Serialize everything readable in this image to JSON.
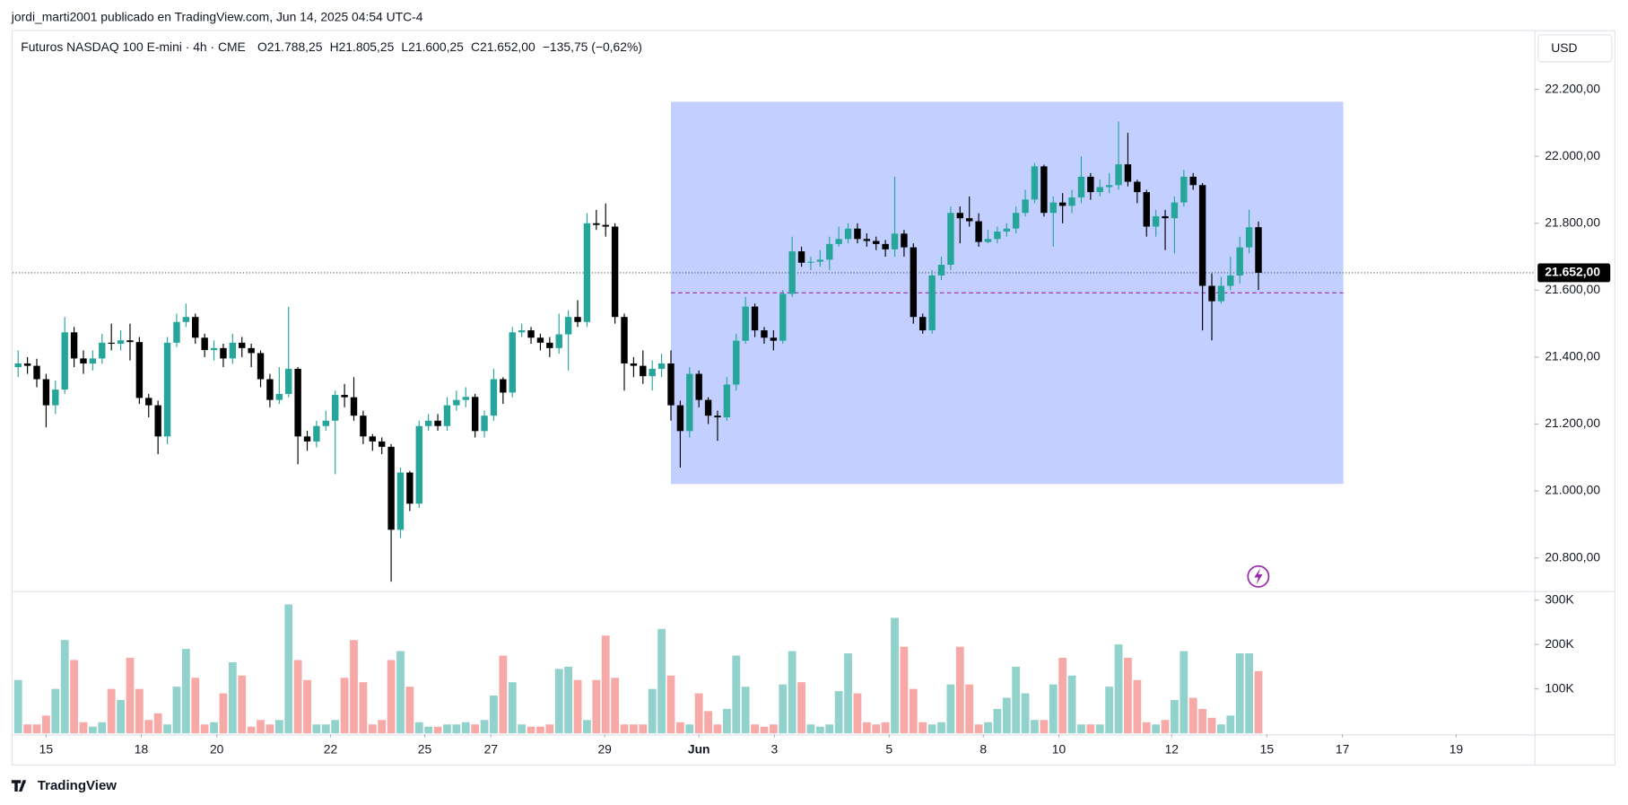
{
  "chart_data": {
    "type": "candlestick",
    "header": "jordi_marti2001 publicado en TradingView.com, Jun 14, 2025 04:54 UTC-4",
    "title": "Futuros NASDAQ 100 E-mini · 4h · CME",
    "ohlc_legend": [
      "O21.788,25",
      "H21.805,25",
      "L21.600,25",
      "C21.652,00",
      "−135,75 (−0,62%)"
    ],
    "currency": "USD",
    "brand": "TradingView",
    "up_color": "#26a69a",
    "down_color": "#000000",
    "volume_up_color": "#92d2cc",
    "volume_down_color": "#f7a9a7",
    "open": [
      21370,
      21381,
      21374,
      21334,
      21256,
      21303,
      21474,
      21396,
      21381,
      21396,
      21443,
      21440,
      21450,
      21445,
      21278,
      21256,
      21163,
      21443,
      21505,
      21520,
      21458,
      21421,
      21427,
      21396,
      21443,
      21427,
      21412,
      21334,
      21272,
      21290,
      21365,
      21163,
      21148,
      21194,
      21210,
      21287,
      21280,
      21225,
      21163,
      21148,
      21132,
      20884,
      21055,
      20962,
      21194,
      21210,
      21194,
      21256,
      21272,
      21281,
      21179,
      21225,
      21334,
      21294,
      21474,
      21480,
      21458,
      21443,
      21427,
      21468,
      21520,
      21505,
      21800,
      21795,
      21790,
      21520,
      21381,
      21374,
      21343,
      21365,
      21381,
      21256,
      21179,
      21350,
      21272,
      21225,
      21220,
      21318,
      21449,
      21551,
      21480,
      21458,
      21449,
      21589,
      21716,
      21682,
      21685,
      21691,
      21738,
      21753,
      21784,
      21753,
      21747,
      21738,
      21722,
      21769,
      21728,
      21520,
      21480,
      21644,
      21676,
      21831,
      21815,
      21806,
      21744,
      21753,
      21775,
      21784,
      21831,
      21871,
      21970,
      21831,
      21862,
      21852,
      21877,
      21939,
      21893,
      21908,
      21914,
      21976,
      21924,
      21893,
      21790,
      21821,
      21815,
      21862,
      21939,
      21914,
      21613,
      21567,
      21613,
      21644,
      21728,
      21788.25
    ],
    "high": [
      21420,
      21400,
      21395,
      21350,
      21330,
      21520,
      21490,
      21420,
      21420,
      21470,
      21500,
      21480,
      21500,
      21460,
      21290,
      21270,
      21460,
      21530,
      21560,
      21530,
      21470,
      21450,
      21440,
      21470,
      21460,
      21440,
      21420,
      21350,
      21370,
      21550,
      21370,
      21180,
      21210,
      21240,
      21300,
      21320,
      21340,
      21240,
      21170,
      21160,
      21140,
      21070,
      21060,
      21210,
      21230,
      21230,
      21280,
      21300,
      21310,
      21290,
      21240,
      21365,
      21340,
      21490,
      21500,
      21490,
      21470,
      21460,
      21530,
      21540,
      21570,
      21830,
      21840,
      21859,
      21800,
      21530,
      21400,
      21420,
      21390,
      21410,
      21420,
      21270,
      21370,
      21360,
      21280,
      21240,
      21340,
      21470,
      21580,
      21560,
      21490,
      21480,
      21600,
      21760,
      21730,
      21700,
      21720,
      21760,
      21790,
      21800,
      21800,
      21770,
      21760,
      21750,
      21939,
      21780,
      21740,
      21530,
      21660,
      21700,
      21850,
      21850,
      21880,
      21830,
      21780,
      21790,
      21800,
      21850,
      21900,
      21980,
      21975,
      21880,
      21890,
      21900,
      22000,
      21950,
      21930,
      21950,
      22104,
      22070,
      21930,
      21900,
      21840,
      21840,
      21880,
      21960,
      21950,
      21920,
      21650,
      21640,
      21700,
      21760,
      21840,
      21805.25
    ],
    "low": [
      21340,
      21350,
      21310,
      21190,
      21230,
      21290,
      21370,
      21350,
      21360,
      21380,
      21420,
      21420,
      21390,
      21260,
      21220,
      21110,
      21140,
      21430,
      21490,
      21440,
      21400,
      21390,
      21370,
      21380,
      21400,
      21370,
      21310,
      21250,
      21260,
      21280,
      21080,
      21120,
      21130,
      21180,
      21050,
      21250,
      21210,
      21140,
      21120,
      21110,
      20729,
      20860,
      20940,
      20950,
      21180,
      21180,
      21180,
      21240,
      21250,
      21160,
      21160,
      21210,
      21260,
      21280,
      21460,
      21440,
      21420,
      21400,
      21410,
      21360,
      21490,
      21490,
      21780,
      21760,
      21500,
      21300,
      21340,
      21320,
      21300,
      21340,
      21210,
      21070,
      21160,
      21250,
      21200,
      21150,
      21210,
      21300,
      21440,
      21460,
      21440,
      21420,
      21440,
      21580,
      21670,
      21660,
      21670,
      21660,
      21730,
      21740,
      21740,
      21730,
      21720,
      21700,
      21700,
      21700,
      21500,
      21470,
      21470,
      21630,
      21660,
      21740,
      21790,
      21730,
      21740,
      21740,
      21760,
      21770,
      21820,
      21860,
      21820,
      21730,
      21800,
      21830,
      21860,
      21870,
      21880,
      21890,
      21900,
      21910,
      21860,
      21760,
      21760,
      21720,
      21710,
      21850,
      21900,
      21480,
      21450,
      21560,
      21600,
      21620,
      21710,
      21600.25
    ],
    "close": [
      21381,
      21374,
      21334,
      21256,
      21303,
      21474,
      21396,
      21381,
      21396,
      21443,
      21440,
      21450,
      21445,
      21278,
      21256,
      21163,
      21443,
      21505,
      21520,
      21458,
      21421,
      21427,
      21396,
      21443,
      21427,
      21412,
      21334,
      21272,
      21290,
      21365,
      21163,
      21148,
      21194,
      21210,
      21287,
      21280,
      21225,
      21163,
      21148,
      21132,
      20884,
      21055,
      20962,
      21194,
      21210,
      21194,
      21256,
      21272,
      21281,
      21179,
      21225,
      21334,
      21294,
      21474,
      21480,
      21458,
      21443,
      21427,
      21468,
      21520,
      21505,
      21800,
      21795,
      21790,
      21520,
      21381,
      21374,
      21343,
      21365,
      21381,
      21256,
      21179,
      21350,
      21272,
      21225,
      21220,
      21318,
      21449,
      21551,
      21480,
      21458,
      21449,
      21589,
      21716,
      21682,
      21685,
      21691,
      21738,
      21753,
      21784,
      21753,
      21747,
      21738,
      21722,
      21769,
      21728,
      21520,
      21480,
      21644,
      21676,
      21831,
      21815,
      21806,
      21744,
      21753,
      21775,
      21784,
      21831,
      21871,
      21970,
      21831,
      21862,
      21852,
      21877,
      21939,
      21893,
      21908,
      21914,
      21976,
      21924,
      21893,
      21790,
      21821,
      21815,
      21862,
      21939,
      21914,
      21613,
      21567,
      21613,
      21644,
      21728,
      21788,
      21652
    ],
    "volume": [
      120000,
      20000,
      20000,
      40000,
      100000,
      210000,
      165000,
      25000,
      15000,
      25000,
      100000,
      75000,
      170000,
      100000,
      30000,
      45000,
      20000,
      105000,
      190000,
      125000,
      20000,
      25000,
      90000,
      160000,
      130000,
      15000,
      30000,
      20000,
      30000,
      290000,
      165000,
      120000,
      20000,
      20000,
      30000,
      125000,
      210000,
      115000,
      20000,
      30000,
      165000,
      185000,
      105000,
      25000,
      15000,
      15000,
      20000,
      20000,
      25000,
      20000,
      30000,
      85000,
      175000,
      115000,
      20000,
      15000,
      15000,
      20000,
      145000,
      150000,
      120000,
      30000,
      120000,
      220000,
      125000,
      20000,
      20000,
      20000,
      100000,
      235000,
      130000,
      25000,
      20000,
      90000,
      50000,
      20000,
      55000,
      175000,
      105000,
      20000,
      15000,
      20000,
      110000,
      185000,
      115000,
      20000,
      15000,
      20000,
      95000,
      180000,
      90000,
      25000,
      20000,
      25000,
      260000,
      195000,
      100000,
      25000,
      20000,
      25000,
      110000,
      195000,
      110000,
      20000,
      25000,
      55000,
      80000,
      150000,
      90000,
      30000,
      30000,
      110000,
      170000,
      130000,
      20000,
      20000,
      20000,
      105000,
      200000,
      170000,
      120000,
      25000,
      20000,
      30000,
      75000,
      185000,
      80000,
      55000,
      35000,
      20000,
      40000,
      180000,
      180000,
      140000
    ],
    "xlim": [
      -0.6,
      162.6
    ],
    "xticks": [
      {
        "value": 3.0,
        "label": "15"
      },
      {
        "value": 13.2,
        "label": "18"
      },
      {
        "value": 21.3,
        "label": "20"
      },
      {
        "value": 33.5,
        "label": "22"
      },
      {
        "value": 43.6,
        "label": "25"
      },
      {
        "value": 50.7,
        "label": "27"
      },
      {
        "value": 62.9,
        "label": "29"
      },
      {
        "value": 73.0,
        "label": "Jun"
      },
      {
        "value": 81.1,
        "label": "3"
      },
      {
        "value": 93.4,
        "label": "5"
      },
      {
        "value": 103.5,
        "label": "8"
      },
      {
        "value": 111.6,
        "label": "10"
      },
      {
        "value": 123.7,
        "label": "12"
      },
      {
        "value": 133.9,
        "label": "15"
      },
      {
        "value": 142.0,
        "label": "17"
      },
      {
        "value": 154.2,
        "label": "19"
      }
    ],
    "ylim": [
      20701,
      22374
    ],
    "yticks": [
      {
        "value": 20800,
        "label": "20.800,00"
      },
      {
        "value": 21000,
        "label": "21.000,00"
      },
      {
        "value": 21200,
        "label": "21.200,00"
      },
      {
        "value": 21400,
        "label": "21.400,00"
      },
      {
        "value": 21600,
        "label": "21.600,00"
      },
      {
        "value": 21800,
        "label": "21.800,00"
      },
      {
        "value": 22000,
        "label": "22.000,00"
      },
      {
        "value": 22200,
        "label": "22.200,00"
      }
    ],
    "volume_ylim": [
      0,
      318000
    ],
    "volume_yticks": [
      {
        "value": 100000,
        "label": "100K"
      },
      {
        "value": 200000,
        "label": "200K"
      },
      {
        "value": 300000,
        "label": "300K"
      }
    ],
    "price_label": {
      "value": 21652,
      "label": "21.652,00"
    },
    "rectangle": {
      "x": [
        70.0,
        142.1
      ],
      "y": [
        21021,
        22163
      ],
      "color": "#c2cfff"
    },
    "level": {
      "value": 21592,
      "x": [
        70.0,
        142.1
      ],
      "color": "#9c27b0"
    }
  }
}
